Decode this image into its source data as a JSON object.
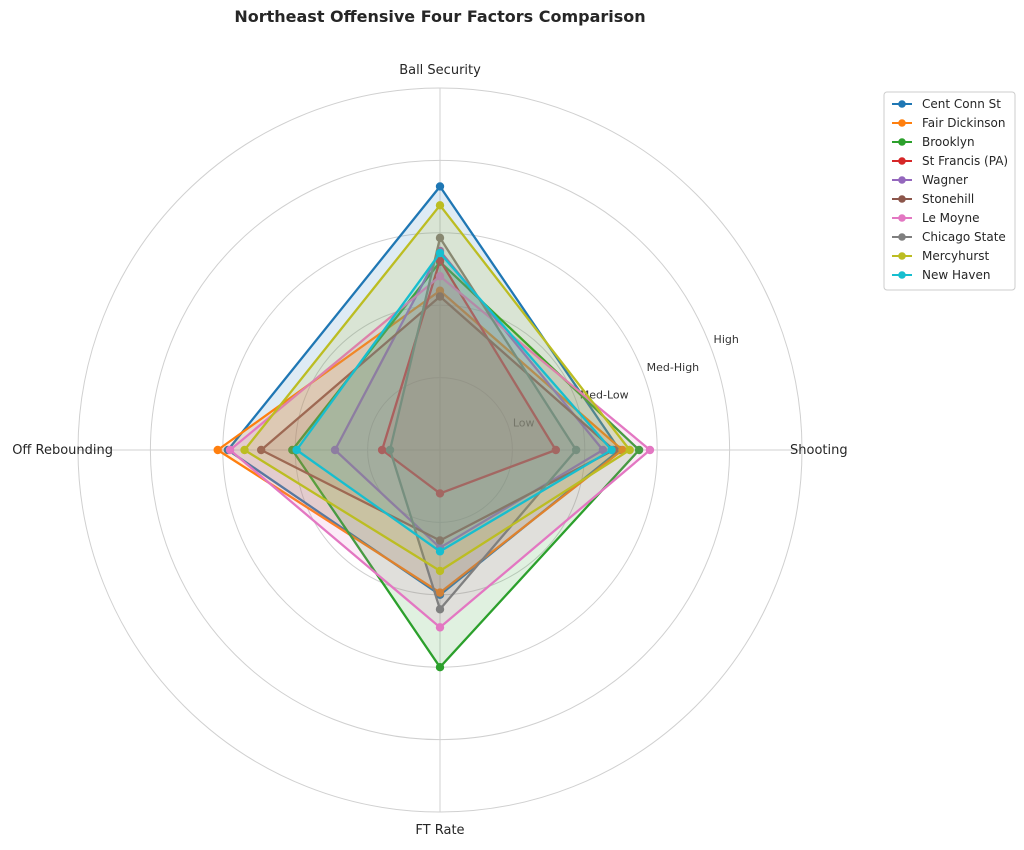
{
  "chart_data": {
    "type": "radar",
    "title": "Northeast Offensive Four Factors Comparison",
    "axes": [
      "Ball Security",
      "Shooting",
      "FT Rate",
      "Off Rebounding"
    ],
    "rings": [
      1,
      2,
      3,
      4,
      5
    ],
    "ring_labels": [
      {
        "value": 1,
        "label": "Low"
      },
      {
        "value": 2,
        "label": "Med-Low"
      },
      {
        "value": 3,
        "label": "Med-High"
      },
      {
        "value": 4,
        "label": "High"
      }
    ],
    "rmax": 5,
    "grid": true,
    "legend_position": "top-right",
    "series": [
      {
        "name": "Cent Conn St",
        "color": "#1f77b4",
        "values": [
          3.64,
          2.48,
          2.0,
          2.93
        ]
      },
      {
        "name": "Fair Dickinson",
        "color": "#ff7f0e",
        "values": [
          2.2,
          2.52,
          1.97,
          3.07
        ]
      },
      {
        "name": "Brooklyn",
        "color": "#2ca02c",
        "values": [
          2.6,
          2.75,
          3.0,
          2.04
        ]
      },
      {
        "name": "St Francis (PA)",
        "color": "#d62728",
        "values": [
          2.62,
          1.6,
          0.6,
          0.8
        ]
      },
      {
        "name": "Wagner",
        "color": "#9467bd",
        "values": [
          2.75,
          2.25,
          1.35,
          1.45
        ]
      },
      {
        "name": "Stonehill",
        "color": "#8c564b",
        "values": [
          2.12,
          2.4,
          1.25,
          2.47
        ]
      },
      {
        "name": "Le Moyne",
        "color": "#e377c2",
        "values": [
          2.4,
          2.9,
          2.45,
          2.9
        ]
      },
      {
        "name": "Chicago State",
        "color": "#7f7f7f",
        "values": [
          2.93,
          1.88,
          2.2,
          0.69
        ]
      },
      {
        "name": "Mercyhurst",
        "color": "#bcbd22",
        "values": [
          3.38,
          2.62,
          1.67,
          2.7
        ]
      },
      {
        "name": "New Haven",
        "color": "#17becf",
        "values": [
          2.72,
          2.37,
          1.4,
          1.98
        ]
      }
    ]
  }
}
